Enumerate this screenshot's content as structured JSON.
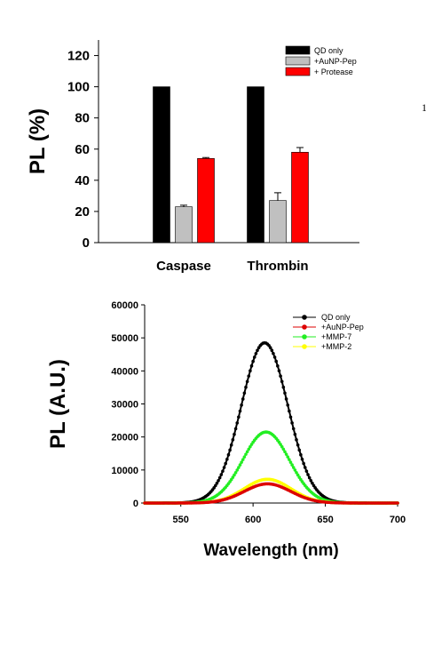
{
  "page_fragment": "1",
  "chart_data": [
    {
      "type": "bar",
      "ylabel": "PL (%)",
      "ylim": [
        0,
        130
      ],
      "yticks": [
        "0",
        "20",
        "40",
        "60",
        "80",
        "100",
        "120"
      ],
      "categories": [
        "Caspase",
        "Thrombin"
      ],
      "legend_placement": "top-right",
      "series": [
        {
          "name": "QD only",
          "color": "#000000",
          "values": [
            100,
            100
          ],
          "errors": [
            0,
            0
          ]
        },
        {
          "name": "+AuNP-Pep",
          "color": "#c0c0c0",
          "values": [
            23,
            27
          ],
          "errors": [
            1,
            5
          ]
        },
        {
          "name": "+ Protease",
          "color": "#ff0000",
          "values": [
            54,
            58
          ],
          "errors": [
            0.6,
            3
          ]
        }
      ]
    },
    {
      "type": "line",
      "xlabel": "Wavelength (nm)",
      "ylabel": "PL (A.U.)",
      "xlim": [
        525,
        700
      ],
      "ylim": [
        0,
        60000
      ],
      "xticks": [
        "550",
        "600",
        "650",
        "700"
      ],
      "yticks": [
        "0",
        "10000",
        "20000",
        "30000",
        "40000",
        "50000",
        "60000"
      ],
      "legend_placement": "top-right",
      "series": [
        {
          "name": "QD only",
          "color": "#000000",
          "peak_x": 608,
          "peak_y": 48500,
          "fwhm_nm": 38
        },
        {
          "name": "+AuNP-Pep",
          "color": "#dd0000",
          "peak_x": 610,
          "peak_y": 5800,
          "fwhm_nm": 38
        },
        {
          "name": "+MMP-7",
          "color": "#22ee22",
          "peak_x": 609,
          "peak_y": 21500,
          "fwhm_nm": 38
        },
        {
          "name": "+MMP-2",
          "color": "#ffff00",
          "peak_x": 610,
          "peak_y": 7200,
          "fwhm_nm": 38
        }
      ]
    }
  ]
}
